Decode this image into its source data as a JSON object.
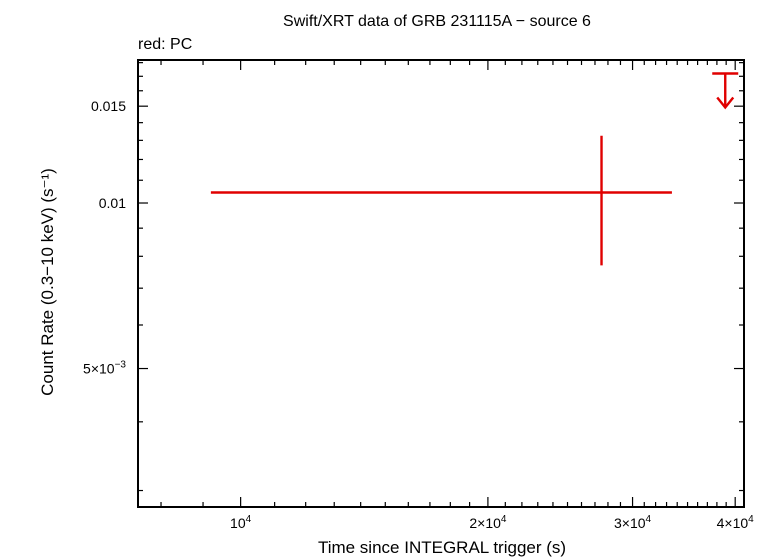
{
  "chart_data": {
    "type": "scatter",
    "title": "Swift/XRT data of GRB 231115A − source 6",
    "subtitle": "red: PC",
    "xlabel": "Time since INTEGRAL trigger (s)",
    "ylabel": "Count Rate (0.3−10 keV) (s⁻¹)",
    "x_scale": "log",
    "y_scale": "log",
    "xlim": [
      7500,
      41000
    ],
    "ylim": [
      0.0028,
      0.0182
    ],
    "x_ticks": [
      {
        "value": 10000,
        "mantissa": "",
        "exp": "4"
      },
      {
        "value": 20000,
        "mantissa": "2×",
        "exp": "4"
      },
      {
        "value": 30000,
        "mantissa": "3×",
        "exp": "4"
      },
      {
        "value": 40000,
        "mantissa": "4×",
        "exp": "4"
      }
    ],
    "y_ticks": [
      {
        "value": 0.005,
        "mantissa": "5×",
        "base": "10",
        "exp": "−3"
      },
      {
        "value": 0.01,
        "text": "0.01"
      },
      {
        "value": 0.015,
        "text": "0.015"
      }
    ],
    "grid": false,
    "series": [
      {
        "color": "#e00000",
        "points": [
          {
            "x": 27500,
            "x_err_low": 18300,
            "x_err_high": 6000,
            "y": 0.01045,
            "y_err_low": 0.00275,
            "y_err_high": 0.0028
          }
        ],
        "upper_limits": [
          {
            "x": 38900,
            "y": 0.0172
          }
        ]
      }
    ]
  }
}
